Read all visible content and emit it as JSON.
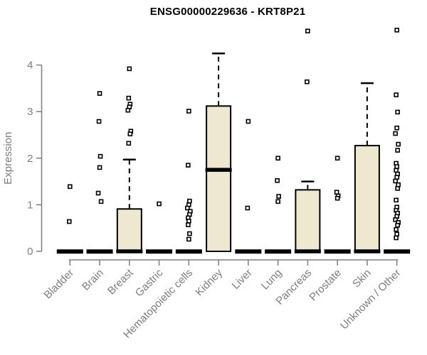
{
  "chart_data": {
    "type": "boxplot",
    "title": "ENSG00000229636 - KRT8P21",
    "ylabel": "Expression",
    "ylim": [
      0,
      4.9
    ],
    "yticks": [
      0,
      1,
      2,
      3,
      4
    ],
    "grid": false,
    "legend": "none",
    "categories": [
      "Bladder",
      "Brain",
      "Breast",
      "Gastric",
      "Hematopoietic cells",
      "Kidney",
      "Liver",
      "Lung",
      "Pancreas",
      "Prostate",
      "Skin",
      "Unknown / Other"
    ],
    "series": [
      {
        "category": "Bladder",
        "q1": 0,
        "median": 0,
        "q3": 0,
        "whisker_low": 0,
        "whisker_high": 0,
        "outliers": [
          1.39,
          0.64
        ]
      },
      {
        "category": "Brain",
        "q1": 0,
        "median": 0,
        "q3": 0,
        "whisker_low": 0,
        "whisker_high": 0,
        "outliers": [
          3.39,
          2.79,
          2.04,
          1.8,
          1.25,
          1.07
        ]
      },
      {
        "category": "Breast",
        "q1": 0,
        "median": 0,
        "q3": 0.91,
        "whisker_low": 0,
        "whisker_high": 1.97,
        "outliers": [
          3.92,
          3.29,
          3.16,
          3.1,
          3.03,
          2.58,
          2.52,
          2.32
        ]
      },
      {
        "category": "Gastric",
        "q1": 0,
        "median": 0,
        "q3": 0,
        "whisker_low": 0,
        "whisker_high": 0,
        "outliers": [
          1.02
        ]
      },
      {
        "category": "Hematopoietic cells",
        "q1": 0,
        "median": 0,
        "q3": 0,
        "whisker_low": 0,
        "whisker_high": 0,
        "outliers": [
          3.01,
          1.85,
          1.08,
          1.0,
          0.93,
          0.86,
          0.79,
          0.72,
          0.65,
          0.57,
          0.38,
          0.26
        ]
      },
      {
        "category": "Kidney",
        "q1": 0,
        "median": 1.75,
        "q3": 3.12,
        "whisker_low": 0,
        "whisker_high": 4.25,
        "outliers": []
      },
      {
        "category": "Liver",
        "q1": 0,
        "median": 0,
        "q3": 0,
        "whisker_low": 0,
        "whisker_high": 0,
        "outliers": [
          2.79,
          0.93
        ]
      },
      {
        "category": "Lung",
        "q1": 0,
        "median": 0,
        "q3": 0,
        "whisker_low": 0,
        "whisker_high": 0,
        "outliers": [
          2.0,
          1.52,
          1.18,
          1.07
        ]
      },
      {
        "category": "Pancreas",
        "q1": 0,
        "median": 0,
        "q3": 1.32,
        "whisker_low": 0,
        "whisker_high": 1.5,
        "outliers": [
          4.73,
          3.64
        ]
      },
      {
        "category": "Prostate",
        "q1": 0,
        "median": 0,
        "q3": 0,
        "whisker_low": 0,
        "whisker_high": 0,
        "outliers": [
          2.0,
          1.27,
          1.19,
          1.14
        ]
      },
      {
        "category": "Skin",
        "q1": 0,
        "median": 0,
        "q3": 2.27,
        "whisker_low": 0,
        "whisker_high": 3.61,
        "outliers": []
      },
      {
        "category": "Unknown / Other",
        "q1": 0,
        "median": 0,
        "q3": 0,
        "whisker_low": 0,
        "whisker_high": 0,
        "outliers": [
          4.75,
          3.36,
          2.99,
          2.65,
          2.53,
          2.3,
          2.17,
          1.89,
          1.82,
          1.74,
          1.66,
          1.59,
          1.51,
          1.43,
          1.35,
          1.1,
          0.95,
          0.88,
          0.82,
          0.75,
          0.68,
          0.62,
          0.56,
          0.47,
          0.37,
          0.29
        ]
      }
    ],
    "colors": {
      "box_fill": "#EEE8D1",
      "box_stroke": "#000000",
      "median_color": "#000000",
      "whisker_color": "#000000",
      "outlier_stroke": "#000000",
      "axis_color": "#7d7d7d",
      "tick_label_color": "#7d7d7d",
      "title_color": "#000000",
      "background": "#ffffff"
    }
  }
}
